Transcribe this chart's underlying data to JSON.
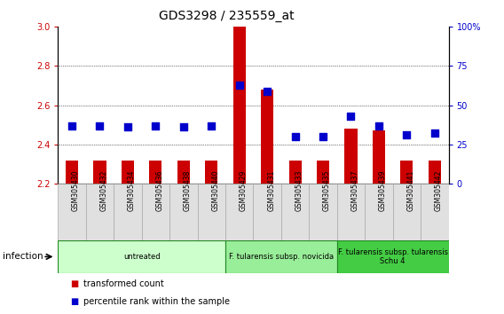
{
  "title": "GDS3298 / 235559_at",
  "samples": [
    "GSM305430",
    "GSM305432",
    "GSM305434",
    "GSM305436",
    "GSM305438",
    "GSM305440",
    "GSM305429",
    "GSM305431",
    "GSM305433",
    "GSM305435",
    "GSM305437",
    "GSM305439",
    "GSM305441",
    "GSM305442"
  ],
  "transformed_count": [
    2.32,
    2.32,
    2.32,
    2.32,
    2.32,
    2.32,
    3.0,
    2.68,
    2.32,
    2.32,
    2.48,
    2.47,
    2.32,
    2.32
  ],
  "percentile_rank": [
    37,
    37,
    36,
    37,
    36,
    37,
    63,
    59,
    30,
    30,
    43,
    37,
    31,
    32
  ],
  "ylim_left": [
    2.2,
    3.0
  ],
  "ylim_right": [
    0,
    100
  ],
  "yticks_left": [
    2.2,
    2.4,
    2.6,
    2.8,
    3.0
  ],
  "yticks_right": [
    0,
    25,
    50,
    75,
    100
  ],
  "bar_color": "#cc0000",
  "dot_color": "#0000cc",
  "background_color": "#ffffff",
  "groups": [
    {
      "label": "untreated",
      "start": 0,
      "end": 6,
      "color": "#ccffcc"
    },
    {
      "label": "F. tularensis subsp. novicida",
      "start": 6,
      "end": 10,
      "color": "#99ee99"
    },
    {
      "label": "F. tularensis subsp. tularensis\nSchu 4",
      "start": 10,
      "end": 14,
      "color": "#44cc44"
    }
  ],
  "infection_label": "infection",
  "legend_items": [
    {
      "color": "#cc0000",
      "label": "transformed count"
    },
    {
      "color": "#0000cc",
      "label": "percentile rank within the sample"
    }
  ],
  "bar_width": 0.45,
  "dot_size": 28,
  "title_fontsize": 10,
  "tick_fontsize": 7,
  "label_fontsize": 7.5
}
